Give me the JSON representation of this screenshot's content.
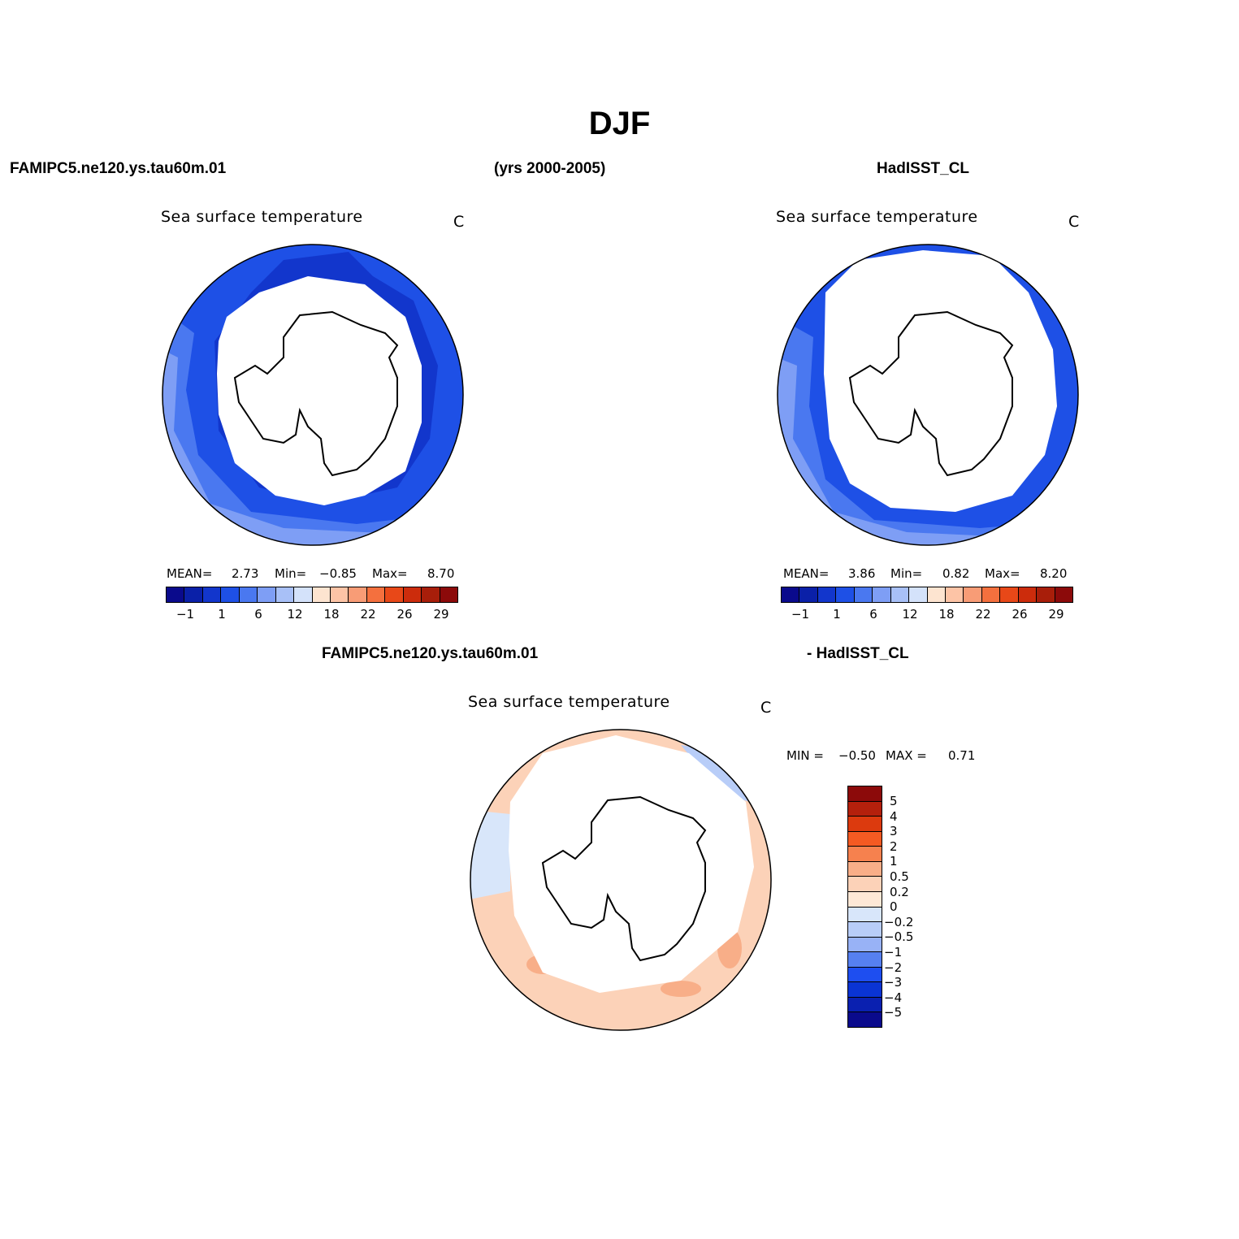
{
  "figure": {
    "season": "DJF",
    "header_left": "FAMIPC5.ne120.ys.tau60m.01",
    "header_mid": "(yrs 2000-2005)",
    "header_right": "HadISST_CL",
    "diff_header_left": "FAMIPC5.ne120.ys.tau60m.01",
    "diff_header_right": "- HadISST_CL"
  },
  "panels": [
    {
      "title": "Sea surface temperature",
      "units": "C",
      "stats": {
        "mean_label": "MEAN=",
        "mean": "2.73",
        "min_label": "Min=",
        "min": "−0.85",
        "max_label": "Max=",
        "max": "8.70"
      }
    },
    {
      "title": "Sea surface temperature",
      "units": "C",
      "stats": {
        "mean_label": "MEAN=",
        "mean": "3.86",
        "min_label": "Min=",
        "min": "0.82",
        "max_label": "Max=",
        "max": "8.20"
      }
    },
    {
      "title": "Sea surface temperature",
      "units": "C",
      "stats": {
        "min_label": "MIN =",
        "min": "−0.50",
        "max_label": "MAX =",
        "max": "0.71"
      }
    }
  ],
  "colorbar_abs": {
    "colors": [
      "#0a0a8c",
      "#0a20a8",
      "#1236cc",
      "#1e50e6",
      "#4a78f0",
      "#7e9ef5",
      "#a8c0f7",
      "#d4e2fa",
      "#fde4d0",
      "#fdc4a6",
      "#f89c76",
      "#f4703e",
      "#e84818",
      "#cc2c0c",
      "#a81e0a",
      "#8c0a0a"
    ],
    "tick_labels": [
      "−1",
      "1",
      "6",
      "12",
      "18",
      "22",
      "26",
      "29"
    ]
  },
  "colorbar_diff": {
    "colors": [
      "#8c0a0a",
      "#b4200c",
      "#dc3a0e",
      "#f45a22",
      "#f6814e",
      "#f8ae88",
      "#fcd2b8",
      "#fde8d6",
      "#d8e6fa",
      "#b8cdf8",
      "#98b2f6",
      "#5680f0",
      "#1e4ef0",
      "#0a34d4",
      "#0a20b0",
      "#0a0a8c"
    ],
    "tick_labels": [
      "5",
      "4",
      "3",
      "2",
      "1",
      "0.5",
      "0.2",
      "0",
      "−0.2",
      "−0.5",
      "−1",
      "−2",
      "−3",
      "−4",
      "−5"
    ]
  }
}
